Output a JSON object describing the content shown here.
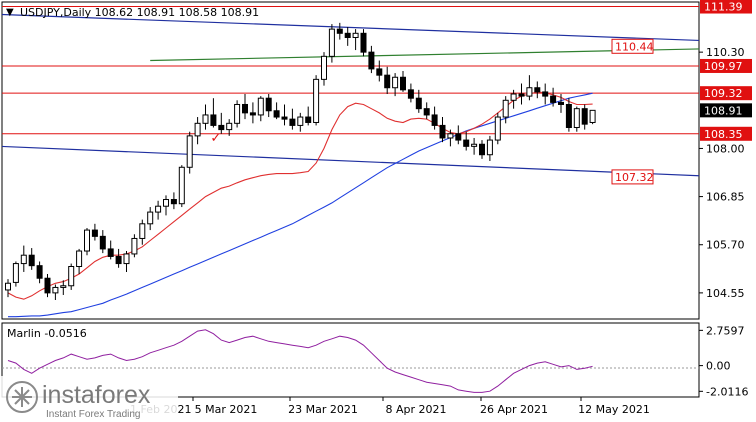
{
  "chart_data": {
    "type": "candlestick",
    "title": "USDJPY,Daily  108.62 108.91 108.58 108.91",
    "symbol": "USDJPY",
    "timeframe": "Daily",
    "ohlc_header": "108.62 108.91 108.58 108.91",
    "price_ticks": [
      "110.30",
      "108.00",
      "106.85",
      "105.70",
      "104.55"
    ],
    "x_ticks": [
      "5 Mar 2021",
      "23 Mar 2021",
      "8 Apr 2021",
      "26 Apr 2021",
      "12 May 2021"
    ],
    "x_tick_partial": "1 Feb 2021",
    "ylim": [
      103.95,
      111.45
    ],
    "level_lines": [
      111.39,
      109.97,
      109.32,
      108.35
    ],
    "level_labels": [
      {
        "text": "111.39",
        "price": 111.39,
        "style": "filled"
      },
      {
        "text": "109.97",
        "price": 109.97,
        "style": "filled"
      },
      {
        "text": "109.32",
        "price": 109.32,
        "style": "filled"
      },
      {
        "text": "108.35",
        "price": 108.35,
        "style": "filled"
      },
      {
        "text": "110.44",
        "price": 110.44,
        "style": "boxed"
      },
      {
        "text": "107.32",
        "price": 107.32,
        "style": "boxed"
      }
    ],
    "current_price": {
      "text": "108.91",
      "value": 108.91
    },
    "candles": [
      [
        104.62,
        104.88,
        104.45,
        104.78
      ],
      [
        104.8,
        105.3,
        104.7,
        105.25
      ],
      [
        105.25,
        105.68,
        105.05,
        105.45
      ],
      [
        105.45,
        105.62,
        105.1,
        105.2
      ],
      [
        105.2,
        105.3,
        104.78,
        104.9
      ],
      [
        104.9,
        105.0,
        104.45,
        104.55
      ],
      [
        104.55,
        104.75,
        104.38,
        104.68
      ],
      [
        104.68,
        104.85,
        104.5,
        104.72
      ],
      [
        104.72,
        105.25,
        104.62,
        105.18
      ],
      [
        105.18,
        105.6,
        105.0,
        105.55
      ],
      [
        105.55,
        106.1,
        105.45,
        106.05
      ],
      [
        106.05,
        106.2,
        105.8,
        105.9
      ],
      [
        105.9,
        106.05,
        105.5,
        105.6
      ],
      [
        105.6,
        105.8,
        105.35,
        105.42
      ],
      [
        105.42,
        105.6,
        105.15,
        105.25
      ],
      [
        105.25,
        105.55,
        105.05,
        105.48
      ],
      [
        105.48,
        105.95,
        105.4,
        105.85
      ],
      [
        105.85,
        106.3,
        105.7,
        106.2
      ],
      [
        106.2,
        106.6,
        106.05,
        106.48
      ],
      [
        106.48,
        106.75,
        106.3,
        106.62
      ],
      [
        106.62,
        106.88,
        106.4,
        106.78
      ],
      [
        106.78,
        106.95,
        106.55,
        106.68
      ],
      [
        106.68,
        107.6,
        106.6,
        107.55
      ],
      [
        107.55,
        108.4,
        107.4,
        108.3
      ],
      [
        108.3,
        108.75,
        108.1,
        108.6
      ],
      [
        108.6,
        109.05,
        108.45,
        108.8
      ],
      [
        108.8,
        109.2,
        108.5,
        108.55
      ],
      [
        108.55,
        108.85,
        108.35,
        108.45
      ],
      [
        108.45,
        108.7,
        108.3,
        108.6
      ],
      [
        108.6,
        109.15,
        108.5,
        109.05
      ],
      [
        109.05,
        109.3,
        108.7,
        108.85
      ],
      [
        108.85,
        109.1,
        108.6,
        108.8
      ],
      [
        108.8,
        109.25,
        108.65,
        109.2
      ],
      [
        109.2,
        109.3,
        108.75,
        108.9
      ],
      [
        108.9,
        109.1,
        108.7,
        108.75
      ],
      [
        108.75,
        109.05,
        108.55,
        108.7
      ],
      [
        108.7,
        108.95,
        108.45,
        108.55
      ],
      [
        108.55,
        108.85,
        108.4,
        108.75
      ],
      [
        108.75,
        109.0,
        108.55,
        108.62
      ],
      [
        108.62,
        109.75,
        108.55,
        109.65
      ],
      [
        109.65,
        110.3,
        109.5,
        110.2
      ],
      [
        110.2,
        110.97,
        110.05,
        110.85
      ],
      [
        110.85,
        111.0,
        110.6,
        110.75
      ],
      [
        110.75,
        110.9,
        110.45,
        110.65
      ],
      [
        110.65,
        110.85,
        110.35,
        110.75
      ],
      [
        110.75,
        110.85,
        110.2,
        110.3
      ],
      [
        110.3,
        110.45,
        109.8,
        109.9
      ],
      [
        109.9,
        110.1,
        109.6,
        109.75
      ],
      [
        109.75,
        109.95,
        109.3,
        109.45
      ],
      [
        109.45,
        109.8,
        109.25,
        109.7
      ],
      [
        109.7,
        109.85,
        109.35,
        109.4
      ],
      [
        109.4,
        109.55,
        109.1,
        109.2
      ],
      [
        109.2,
        109.4,
        108.85,
        108.95
      ],
      [
        108.95,
        109.1,
        108.7,
        108.8
      ],
      [
        108.8,
        109.0,
        108.45,
        108.55
      ],
      [
        108.55,
        108.75,
        108.15,
        108.25
      ],
      [
        108.25,
        108.45,
        108.05,
        108.35
      ],
      [
        108.35,
        108.55,
        108.1,
        108.2
      ],
      [
        108.2,
        108.4,
        107.95,
        108.05
      ],
      [
        108.05,
        108.25,
        107.85,
        108.1
      ],
      [
        108.1,
        108.2,
        107.75,
        107.85
      ],
      [
        107.85,
        108.3,
        107.7,
        108.2
      ],
      [
        108.2,
        108.85,
        108.1,
        108.75
      ],
      [
        108.75,
        109.25,
        108.6,
        109.15
      ],
      [
        109.15,
        109.4,
        108.95,
        109.3
      ],
      [
        109.3,
        109.55,
        109.05,
        109.25
      ],
      [
        109.25,
        109.75,
        109.15,
        109.45
      ],
      [
        109.45,
        109.6,
        109.2,
        109.35
      ],
      [
        109.35,
        109.55,
        109.05,
        109.25
      ],
      [
        109.25,
        109.45,
        109.0,
        109.1
      ],
      [
        109.1,
        109.3,
        108.85,
        109.05
      ],
      [
        109.05,
        109.2,
        108.4,
        108.5
      ],
      [
        108.5,
        109.0,
        108.4,
        108.95
      ],
      [
        108.95,
        109.05,
        108.45,
        108.58
      ],
      [
        108.62,
        108.91,
        108.58,
        108.91
      ]
    ],
    "ma_red": [
      104.55,
      104.45,
      104.4,
      104.48,
      104.6,
      104.7,
      104.78,
      104.82,
      104.9,
      105.0,
      105.15,
      105.3,
      105.4,
      105.45,
      105.45,
      105.48,
      105.55,
      105.65,
      105.8,
      105.95,
      106.1,
      106.25,
      106.4,
      106.55,
      106.7,
      106.85,
      106.95,
      107.05,
      107.1,
      107.18,
      107.25,
      107.3,
      107.35,
      107.38,
      107.4,
      107.4,
      107.4,
      107.42,
      107.45,
      107.65,
      108.0,
      108.45,
      108.8,
      109.0,
      109.08,
      109.05,
      108.95,
      108.85,
      108.72,
      108.65,
      108.62,
      108.7,
      108.72,
      108.7,
      108.6,
      108.48,
      108.38,
      108.35,
      108.4,
      108.48,
      108.58,
      108.7,
      108.85,
      109.0,
      109.15,
      109.25,
      109.3,
      109.35,
      109.33,
      109.28,
      109.22,
      109.12,
      109.05,
      109.05,
      109.06
    ],
    "ma_blue": [
      103.98,
      103.98,
      103.99,
      104.0,
      104.0,
      104.02,
      104.05,
      104.08,
      104.1,
      104.15,
      104.2,
      104.25,
      104.3,
      104.38,
      104.45,
      104.52,
      104.6,
      104.68,
      104.76,
      104.84,
      104.92,
      105.0,
      105.08,
      105.16,
      105.24,
      105.32,
      105.4,
      105.48,
      105.56,
      105.64,
      105.72,
      105.8,
      105.88,
      105.96,
      106.04,
      106.12,
      106.2,
      106.3,
      106.4,
      106.5,
      106.6,
      106.7,
      106.82,
      106.94,
      107.06,
      107.18,
      107.3,
      107.42,
      107.54,
      107.64,
      107.74,
      107.84,
      107.94,
      108.02,
      108.1,
      108.18,
      108.26,
      108.34,
      108.42,
      108.48,
      108.54,
      108.6,
      108.66,
      108.72,
      108.78,
      108.84,
      108.9,
      108.96,
      109.02,
      109.08,
      109.14,
      109.2,
      109.24,
      109.28,
      109.32
    ],
    "trendlines": [
      {
        "color": "#2030a0",
        "x1": -1,
        "p1": 111.2,
        "x2": 106,
        "p2": 110.45
      },
      {
        "color": "#2030a0",
        "x1": -1,
        "p1": 108.05,
        "x2": 106,
        "p2": 107.2
      },
      {
        "color": "#308030",
        "x1": 18,
        "p1": 110.1,
        "x2": 106,
        "p2": 110.45
      }
    ],
    "check_mark": {
      "index": 26,
      "price": 108.2
    },
    "indicator": {
      "name": "Marlin -0.0516",
      "value": -0.0516,
      "ticks": [
        "2.7597",
        "0.00",
        "-2.0116"
      ],
      "ylim": [
        -2.3,
        3.1
      ],
      "values": [
        0.4,
        0.2,
        -0.3,
        -0.6,
        -0.2,
        0.1,
        0.4,
        0.6,
        0.9,
        0.7,
        0.5,
        0.6,
        0.8,
        0.9,
        0.6,
        0.4,
        0.5,
        0.7,
        1.0,
        1.2,
        1.4,
        1.6,
        1.9,
        2.3,
        2.7,
        2.8,
        2.5,
        2.0,
        1.8,
        2.0,
        2.2,
        2.3,
        2.1,
        1.9,
        1.8,
        1.7,
        1.6,
        1.5,
        1.4,
        1.6,
        1.9,
        2.1,
        2.3,
        2.2,
        2.0,
        1.6,
        1.0,
        0.4,
        -0.2,
        -0.5,
        -0.7,
        -0.9,
        -1.1,
        -1.3,
        -1.4,
        -1.5,
        -1.6,
        -1.9,
        -2.0,
        -2.1,
        -2.1,
        -2.0,
        -1.6,
        -1.1,
        -0.6,
        -0.3,
        0.0,
        0.2,
        0.3,
        0.1,
        -0.1,
        0.0,
        -0.3,
        -0.2,
        -0.05
      ]
    }
  },
  "branding": {
    "logo_text": "instaforex",
    "tagline": "Instant Forex Trading"
  },
  "colors": {
    "level": "#e01010",
    "ma_red": "#e03030",
    "ma_blue": "#2040e0",
    "trend": "#2030a0",
    "green": "#308030",
    "indicator": "#9020a0"
  }
}
